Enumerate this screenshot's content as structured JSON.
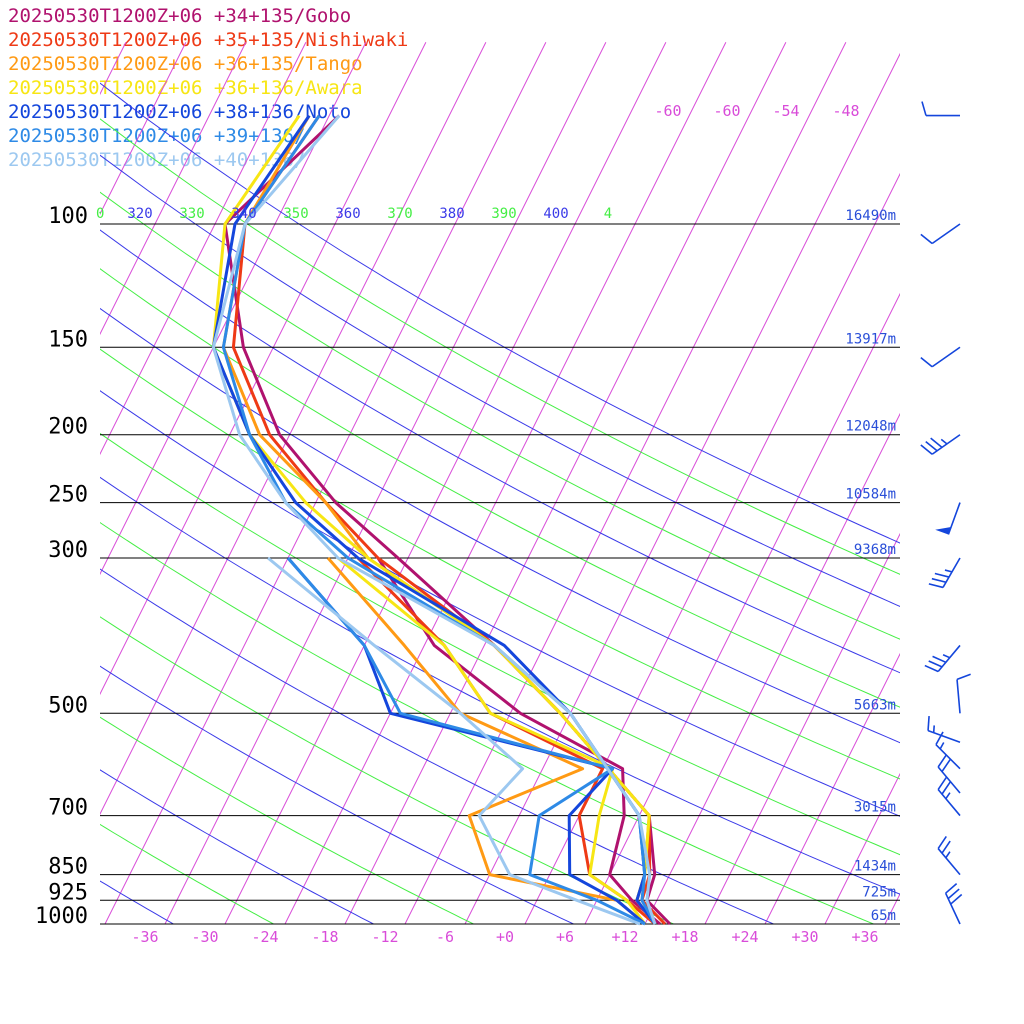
{
  "legend": [
    {
      "label": "20250530T1200Z+06 +34+135/Gobo",
      "color": "#b0126e"
    },
    {
      "label": "20250530T1200Z+06 +35+135/Nishiwaki",
      "color": "#ee3a16"
    },
    {
      "label": "20250530T1200Z+06 +36+135/Tango",
      "color": "#ff9a14"
    },
    {
      "label": "20250530T1200Z+06 +36+136/Awara",
      "color": "#f7e614"
    },
    {
      "label": "20250530T1200Z+06 +38+136/Noto",
      "color": "#1446dc"
    },
    {
      "label": "20250530T1200Z+06 +39+136/",
      "color": "#2e8ae6"
    },
    {
      "label": "20250530T1200Z+06 +40+136/",
      "color": "#9cc8f0"
    }
  ],
  "chart_data": {
    "type": "line",
    "subtype": "skew-T log-P diagram",
    "pressure_levels": [
      {
        "p": 100,
        "label": "100",
        "height": "16490m"
      },
      {
        "p": 150,
        "label": "150",
        "height": "13917m"
      },
      {
        "p": 200,
        "label": "200",
        "height": "12048m"
      },
      {
        "p": 250,
        "label": "250",
        "height": "10584m"
      },
      {
        "p": 300,
        "label": "300",
        "height": "9368m"
      },
      {
        "p": 500,
        "label": "500",
        "height": "5663m"
      },
      {
        "p": 700,
        "label": "700",
        "height": "3015m"
      },
      {
        "p": 850,
        "label": "850",
        "height": "1434m"
      },
      {
        "p": 925,
        "label": "925",
        "height": "725m"
      },
      {
        "p": 1000,
        "label": "1000",
        "height": "65m"
      }
    ],
    "temperature_ticks": [
      "-36",
      "-30",
      "-24",
      "-18",
      "-12",
      "-6",
      "+0",
      "+6",
      "+12",
      "+18",
      "+24",
      "+30",
      "+36"
    ],
    "temperature_ticks_upper": [
      "-60",
      "-60",
      "-54",
      "-48"
    ],
    "theta_labels": [
      {
        "label": "0",
        "color": "#44ee44"
      },
      {
        "label": "320",
        "color": "#3a3ae8"
      },
      {
        "label": "330",
        "color": "#44ee44"
      },
      {
        "label": "340",
        "color": "#3a3ae8"
      },
      {
        "label": "350",
        "color": "#44ee44"
      },
      {
        "label": "360",
        "color": "#3a3ae8"
      },
      {
        "label": "370",
        "color": "#44ee44"
      },
      {
        "label": "380",
        "color": "#3a3ae8"
      },
      {
        "label": "390",
        "color": "#44ee44"
      },
      {
        "label": "400",
        "color": "#3a3ae8"
      },
      {
        "label": "4",
        "color": "#44ee44"
      }
    ],
    "colors": {
      "isotherm": "#d94cd9",
      "dry_adiabat_even": "#44ee44",
      "dry_adiabat_odd": "#3a3ae8",
      "isobar": "#000000",
      "wind_barb": "#1446dc"
    },
    "series": [
      {
        "legend_index": 0,
        "temperature": [
          [
            1000,
            16.5
          ],
          [
            925,
            13
          ],
          [
            850,
            12.5
          ],
          [
            700,
            9
          ],
          [
            500,
            -5
          ],
          [
            400,
            -15
          ],
          [
            300,
            -29
          ],
          [
            250,
            -38
          ],
          [
            200,
            -47
          ],
          [
            150,
            -55
          ],
          [
            100,
            -63
          ],
          [
            70,
            -57
          ]
        ],
        "dewpoint": [
          [
            1000,
            15.5
          ],
          [
            925,
            11.5
          ],
          [
            850,
            8
          ],
          [
            700,
            6.5
          ],
          [
            600,
            4
          ],
          [
            500,
            -9
          ],
          [
            400,
            -21
          ],
          [
            300,
            -31
          ]
        ]
      },
      {
        "legend_index": 1,
        "temperature": [
          [
            1000,
            16
          ],
          [
            925,
            12.5
          ],
          [
            850,
            12
          ],
          [
            700,
            9
          ],
          [
            500,
            -5
          ],
          [
            400,
            -15
          ],
          [
            300,
            -31
          ],
          [
            250,
            -39
          ],
          [
            200,
            -48
          ],
          [
            150,
            -56
          ],
          [
            100,
            -61
          ],
          [
            70,
            -59
          ]
        ],
        "dewpoint": [
          [
            1000,
            15
          ],
          [
            925,
            11
          ],
          [
            850,
            6
          ],
          [
            700,
            2
          ],
          [
            600,
            2
          ],
          [
            500,
            -12
          ],
          [
            400,
            -20
          ],
          [
            300,
            -33
          ]
        ]
      },
      {
        "legend_index": 2,
        "temperature": [
          [
            1000,
            15
          ],
          [
            925,
            12
          ],
          [
            850,
            11.5
          ],
          [
            700,
            9
          ],
          [
            500,
            -5
          ],
          [
            400,
            -15
          ],
          [
            300,
            -32
          ],
          [
            250,
            -39
          ],
          [
            200,
            -49
          ],
          [
            150,
            -57
          ],
          [
            100,
            -61
          ],
          [
            70,
            -60
          ]
        ],
        "dewpoint": [
          [
            1000,
            14
          ],
          [
            925,
            10
          ],
          [
            850,
            -4
          ],
          [
            700,
            -9
          ],
          [
            600,
            0
          ],
          [
            500,
            -15
          ],
          [
            400,
            -24
          ],
          [
            300,
            -36
          ]
        ]
      },
      {
        "legend_index": 3,
        "temperature": [
          [
            1000,
            15
          ],
          [
            925,
            12
          ],
          [
            850,
            11.5
          ],
          [
            700,
            9
          ],
          [
            500,
            -5
          ],
          [
            400,
            -15
          ],
          [
            300,
            -32
          ],
          [
            250,
            -41
          ],
          [
            200,
            -50
          ],
          [
            150,
            -58
          ],
          [
            100,
            -63
          ],
          [
            70,
            -61
          ]
        ],
        "dewpoint": [
          [
            1000,
            14
          ],
          [
            925,
            11
          ],
          [
            850,
            6
          ],
          [
            700,
            4
          ],
          [
            600,
            3
          ],
          [
            500,
            -12
          ],
          [
            400,
            -20
          ],
          [
            300,
            -35
          ]
        ]
      },
      {
        "legend_index": 4,
        "temperature": [
          [
            1000,
            15
          ],
          [
            925,
            12
          ],
          [
            850,
            11.5
          ],
          [
            700,
            8
          ],
          [
            500,
            -4
          ],
          [
            400,
            -14
          ],
          [
            300,
            -33
          ],
          [
            250,
            -42
          ],
          [
            200,
            -50
          ],
          [
            150,
            -58
          ],
          [
            100,
            -62
          ],
          [
            70,
            -60
          ]
        ],
        "dewpoint": [
          [
            1000,
            14
          ],
          [
            925,
            10
          ],
          [
            850,
            4
          ],
          [
            700,
            1
          ],
          [
            600,
            3
          ],
          [
            500,
            -22
          ],
          [
            400,
            -28
          ],
          [
            300,
            -40
          ]
        ]
      },
      {
        "legend_index": 5,
        "temperature": [
          [
            1000,
            15
          ],
          [
            925,
            12.5
          ],
          [
            850,
            11.5
          ],
          [
            700,
            8
          ],
          [
            500,
            -4
          ],
          [
            400,
            -15
          ],
          [
            300,
            -34
          ],
          [
            250,
            -43
          ],
          [
            200,
            -50
          ],
          [
            150,
            -57
          ],
          [
            100,
            -61
          ],
          [
            70,
            -59
          ]
        ],
        "dewpoint": [
          [
            1000,
            14
          ],
          [
            925,
            8
          ],
          [
            850,
            0
          ],
          [
            700,
            -2
          ],
          [
            600,
            3
          ],
          [
            500,
            -21
          ],
          [
            400,
            -28
          ],
          [
            300,
            -40
          ]
        ]
      },
      {
        "legend_index": 6,
        "temperature": [
          [
            1000,
            15
          ],
          [
            925,
            13
          ],
          [
            850,
            12
          ],
          [
            700,
            8
          ],
          [
            500,
            -4
          ],
          [
            400,
            -15
          ],
          [
            300,
            -35
          ],
          [
            250,
            -43
          ],
          [
            200,
            -51
          ],
          [
            150,
            -58
          ],
          [
            100,
            -61
          ],
          [
            70,
            -57
          ]
        ],
        "dewpoint": [
          [
            1000,
            13.5
          ],
          [
            925,
            6
          ],
          [
            850,
            -2
          ],
          [
            700,
            -8
          ],
          [
            600,
            -6
          ],
          [
            500,
            -15
          ],
          [
            400,
            -27
          ],
          [
            300,
            -42
          ]
        ]
      }
    ],
    "wind_barbs": [
      {
        "p": 70,
        "dir_deg": 270,
        "speed_kt": 10
      },
      {
        "p": 100,
        "dir_deg": 235,
        "speed_kt": 10
      },
      {
        "p": 150,
        "dir_deg": 235,
        "speed_kt": 10
      },
      {
        "p": 200,
        "dir_deg": 235,
        "speed_kt": 35
      },
      {
        "p": 250,
        "dir_deg": 200,
        "speed_kt": 50
      },
      {
        "p": 300,
        "dir_deg": 210,
        "speed_kt": 35
      },
      {
        "p": 400,
        "dir_deg": 220,
        "speed_kt": 35
      },
      {
        "p": 500,
        "dir_deg": 355,
        "speed_kt": 10
      },
      {
        "p": 550,
        "dir_deg": 290,
        "speed_kt": 15
      },
      {
        "p": 600,
        "dir_deg": 315,
        "speed_kt": 15
      },
      {
        "p": 650,
        "dir_deg": 320,
        "speed_kt": 20
      },
      {
        "p": 700,
        "dir_deg": 320,
        "speed_kt": 25
      },
      {
        "p": 850,
        "dir_deg": 320,
        "speed_kt": 25
      },
      {
        "p": 1000,
        "dir_deg": 335,
        "speed_kt": 30
      }
    ],
    "xlim": [
      -40,
      40
    ],
    "ylim": [
      1000,
      100
    ]
  }
}
